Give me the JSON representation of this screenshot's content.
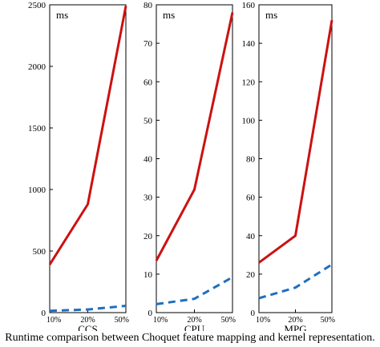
{
  "caption": "Runtime comparison between Choquet feature mapping and kernel representation.",
  "chart_data": [
    {
      "type": "line",
      "title": "CCS",
      "unit_label": "ms",
      "categories": [
        "10%",
        "20%",
        "50%"
      ],
      "ylim": [
        0,
        2500
      ],
      "yticks": [
        0,
        500,
        1000,
        1500,
        2000,
        2500
      ],
      "series": [
        {
          "values": [
            390,
            880,
            2490
          ],
          "color": "#cc1111",
          "style": "solid"
        },
        {
          "values": [
            15,
            25,
            55
          ],
          "color": "#1f6fbf",
          "style": "dashed"
        }
      ]
    },
    {
      "type": "line",
      "title": "CPU",
      "unit_label": "ms",
      "categories": [
        "10%",
        "20%",
        "50%"
      ],
      "ylim": [
        0,
        80
      ],
      "yticks": [
        0,
        10,
        20,
        30,
        40,
        50,
        60,
        70,
        80
      ],
      "series": [
        {
          "values": [
            13.5,
            32,
            78
          ],
          "color": "#cc1111",
          "style": "solid"
        },
        {
          "values": [
            2.2,
            3.6,
            9.2
          ],
          "color": "#1f6fbf",
          "style": "dashed"
        }
      ]
    },
    {
      "type": "line",
      "title": "MPG",
      "unit_label": "ms",
      "categories": [
        "10%",
        "20%",
        "50%"
      ],
      "ylim": [
        0,
        160
      ],
      "yticks": [
        0,
        20,
        40,
        60,
        80,
        100,
        120,
        140,
        160
      ],
      "series": [
        {
          "values": [
            26,
            40,
            152
          ],
          "color": "#cc1111",
          "style": "solid"
        },
        {
          "values": [
            7.5,
            13,
            25
          ],
          "color": "#1f6fbf",
          "style": "dashed"
        }
      ]
    }
  ]
}
